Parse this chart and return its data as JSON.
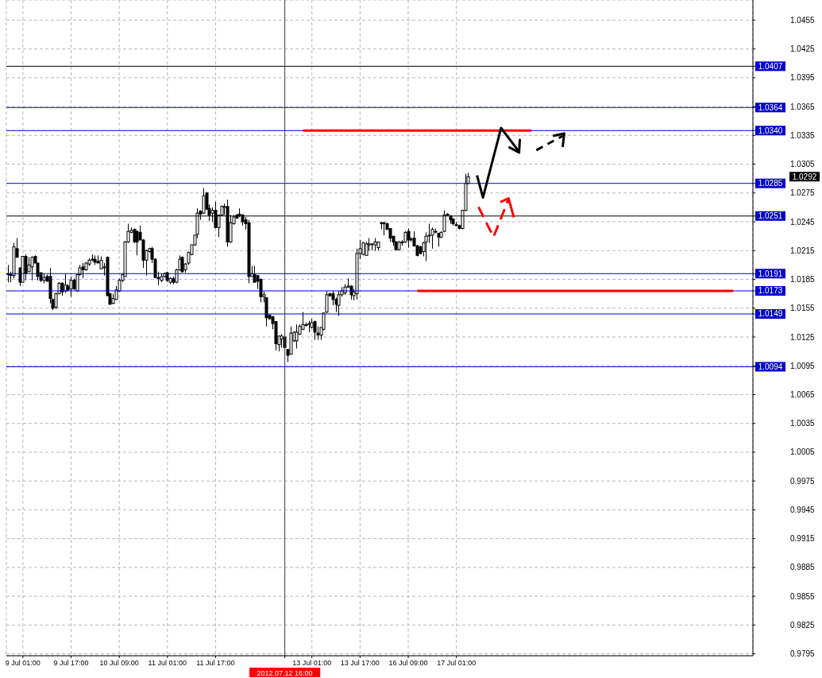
{
  "chart_data": {
    "type": "candlestick",
    "color": "#000000",
    "grid": true,
    "categories": [
      null,
      null,
      null,
      null,
      null,
      "9 Jul 01:00",
      null,
      null,
      null,
      null,
      null,
      null,
      null,
      null,
      null,
      null,
      null,
      null,
      null,
      null,
      null,
      "9 Jul 17:00",
      null,
      null,
      null,
      null,
      null,
      null,
      null,
      null,
      null,
      null,
      null,
      null,
      null,
      null,
      null,
      "10 Jul 09:00",
      null,
      null,
      null,
      null,
      null,
      null,
      null,
      null,
      null,
      null,
      null,
      null,
      null,
      null,
      null,
      "11 Jul 01:00",
      null,
      null,
      null,
      null,
      null,
      null,
      null,
      null,
      null,
      null,
      null,
      null,
      null,
      null,
      null,
      "11 Jul 17:00",
      null,
      null,
      null,
      null,
      null,
      null,
      null,
      null,
      null,
      null,
      null,
      null,
      null,
      null,
      null,
      null,
      null,
      null,
      null,
      null,
      null,
      null,
      "2012.07.12 16:00",
      null,
      null,
      null,
      null,
      null,
      null,
      null,
      null,
      "13 Jul 01:00",
      null,
      null,
      null,
      null,
      null,
      null,
      null,
      null,
      null,
      null,
      null,
      null,
      null,
      null,
      null,
      "13 Jul 17:00",
      null,
      null,
      null,
      null,
      null,
      null,
      null,
      null,
      null,
      null,
      null,
      null,
      null,
      null,
      null,
      "16 Jul 09:00",
      null,
      null,
      null,
      null,
      null,
      null,
      null,
      null,
      null,
      null,
      null,
      null,
      null,
      null,
      null,
      "17 Jul 01:00",
      null,
      null,
      null,
      null,
      null,
      null,
      null,
      null,
      null,
      null,
      null,
      null,
      null,
      null,
      null,
      null,
      null,
      null,
      null,
      null,
      null,
      null,
      null,
      null,
      null,
      null,
      null,
      null,
      null,
      null,
      null,
      null,
      null,
      null,
      null,
      null,
      null,
      null,
      null,
      null,
      null,
      null,
      null,
      null,
      null,
      null,
      null,
      null,
      null,
      null,
      null,
      null,
      null,
      null,
      null,
      null,
      null,
      null,
      null,
      null,
      null,
      null,
      null,
      null,
      null,
      null,
      null,
      null,
      null,
      null,
      null,
      null,
      null,
      null,
      null,
      null,
      null,
      null,
      null,
      null,
      null,
      null,
      null,
      null,
      null,
      null,
      null,
      null,
      null,
      null,
      null,
      null,
      null,
      null,
      null,
      null,
      null,
      null
    ],
    "ohlc": [
      [
        1.019,
        1.02,
        1.0182,
        1.0191
      ],
      [
        1.0189,
        1.0193,
        1.0182,
        1.019
      ],
      [
        1.0189,
        1.0223,
        1.0186,
        1.0219
      ],
      [
        1.0217,
        1.0228,
        1.0208,
        1.0208
      ],
      [
        1.0197,
        1.0197,
        1.0178,
        1.0182
      ],
      [
        1.0182,
        1.0209,
        1.0182,
        1.0209
      ],
      [
        1.0209,
        1.0211,
        1.0184,
        1.0191
      ],
      [
        1.0193,
        1.0208,
        1.0193,
        1.02
      ],
      [
        1.0198,
        1.0209,
        1.0184,
        1.0208
      ],
      [
        1.0209,
        1.021,
        1.0202,
        1.0202
      ],
      [
        1.0202,
        1.0202,
        1.0184,
        1.0188
      ],
      [
        1.0192,
        1.0192,
        1.0182,
        1.0184
      ],
      [
        1.0184,
        1.0191,
        1.0181,
        1.0187
      ],
      [
        1.0188,
        1.019,
        1.0183,
        1.0183
      ],
      [
        1.0188,
        1.0197,
        1.016,
        1.0165
      ],
      [
        1.0164,
        1.0165,
        1.0153,
        1.0155
      ],
      [
        1.0156,
        1.0171,
        1.0154,
        1.017
      ],
      [
        1.017,
        1.0182,
        1.017,
        1.0181
      ],
      [
        1.0181,
        1.0182,
        1.0168,
        1.0172
      ],
      [
        1.0173,
        1.0191,
        1.0171,
        1.0179
      ],
      [
        1.0178,
        1.018,
        1.0173,
        1.0174
      ],
      [
        1.0175,
        1.0188,
        1.0167,
        1.0184
      ],
      [
        1.0184,
        1.0186,
        1.0174,
        1.0175
      ],
      [
        1.0173,
        1.019,
        1.0173,
        1.019
      ],
      [
        1.019,
        1.02,
        1.0189,
        1.0197
      ],
      [
        1.0198,
        1.0202,
        1.0186,
        1.0195
      ],
      [
        1.0195,
        1.0203,
        1.0194,
        1.0202
      ],
      [
        1.0201,
        1.0207,
        1.0199,
        1.0205
      ],
      [
        1.0206,
        1.0211,
        1.0204,
        1.0206
      ],
      [
        1.0206,
        1.021,
        1.02,
        1.0203
      ],
      [
        1.0204,
        1.021,
        1.0202,
        1.0202
      ],
      [
        1.0196,
        1.0209,
        1.0196,
        1.0205
      ],
      [
        1.0197,
        1.0202,
        1.0189,
        1.0198
      ],
      [
        1.0208,
        1.0209,
        1.0168,
        1.0168
      ],
      [
        1.017,
        1.0171,
        1.0159,
        1.0159
      ],
      [
        1.016,
        1.017,
        1.0159,
        1.0165
      ],
      [
        1.0164,
        1.0178,
        1.0164,
        1.0174
      ],
      [
        1.0173,
        1.0186,
        1.0172,
        1.0184
      ],
      [
        1.0184,
        1.0191,
        1.0182,
        1.019
      ],
      [
        1.0188,
        1.0225,
        1.0188,
        1.0224
      ],
      [
        1.0224,
        1.0243,
        1.0223,
        1.0235
      ],
      [
        1.0234,
        1.0239,
        1.0233,
        1.0236
      ],
      [
        1.0237,
        1.0238,
        1.0223,
        1.0224
      ],
      [
        1.0235,
        1.0236,
        1.021,
        1.0224
      ],
      [
        1.0234,
        1.0241,
        1.0226,
        1.0226
      ],
      [
        1.0226,
        1.0227,
        1.0197,
        1.0205
      ],
      [
        1.0205,
        1.0216,
        1.0189,
        1.0215
      ],
      [
        1.0214,
        1.0218,
        1.0213,
        1.0217
      ],
      [
        1.0217,
        1.0219,
        1.0202,
        1.0206
      ],
      [
        1.0206,
        1.0207,
        1.0186,
        1.0187
      ],
      [
        1.0187,
        1.0193,
        1.0179,
        1.0186
      ],
      [
        1.0184,
        1.0191,
        1.0182,
        1.0188
      ],
      [
        1.0188,
        1.0192,
        1.0187,
        1.0191
      ],
      [
        1.0192,
        1.0193,
        1.0182,
        1.0184
      ],
      [
        1.0182,
        1.0187,
        1.018,
        1.0186
      ],
      [
        1.0186,
        1.0188,
        1.018,
        1.0182
      ],
      [
        1.0182,
        1.0196,
        1.0181,
        1.0195
      ],
      [
        1.0195,
        1.021,
        1.0194,
        1.0206
      ],
      [
        1.0208,
        1.0209,
        1.0192,
        1.0193
      ],
      [
        1.0195,
        1.0202,
        1.0192,
        1.0201
      ],
      [
        1.0202,
        1.0214,
        1.02,
        1.0213
      ],
      [
        1.0211,
        1.0221,
        1.021,
        1.0221
      ],
      [
        1.0221,
        1.0231,
        1.022,
        1.0231
      ],
      [
        1.0232,
        1.0259,
        1.0228,
        1.0254
      ],
      [
        1.0256,
        1.0257,
        1.0247,
        1.0253
      ],
      [
        1.0254,
        1.028,
        1.0253,
        1.0272
      ],
      [
        1.0275,
        1.0276,
        1.0258,
        1.0258
      ],
      [
        1.0259,
        1.0263,
        1.0246,
        1.0252
      ],
      [
        1.0254,
        1.026,
        1.0245,
        1.0257
      ],
      [
        1.0257,
        1.0266,
        1.0238,
        1.0239
      ],
      [
        1.0239,
        1.0252,
        1.0229,
        1.0252
      ],
      [
        1.0252,
        1.0262,
        1.0251,
        1.0261
      ],
      [
        1.026,
        1.0264,
        1.0252,
        1.0261
      ],
      [
        1.0261,
        1.0268,
        1.0219,
        1.0224
      ],
      [
        1.0224,
        1.0252,
        1.0223,
        1.0244
      ],
      [
        1.0243,
        1.0252,
        1.0242,
        1.025
      ],
      [
        1.0252,
        1.0253,
        1.0248,
        1.0249
      ],
      [
        1.0252,
        1.0259,
        1.025,
        1.0253
      ],
      [
        1.0252,
        1.0253,
        1.0241,
        1.0245
      ],
      [
        1.0247,
        1.025,
        1.0237,
        1.0243
      ],
      [
        1.0244,
        1.0247,
        1.0181,
        1.0188
      ],
      [
        1.0188,
        1.0199,
        1.0188,
        1.0191
      ],
      [
        1.019,
        1.0199,
        1.0182,
        1.0182
      ],
      [
        1.0189,
        1.0189,
        1.0175,
        1.0183
      ],
      [
        1.0185,
        1.0186,
        1.0161,
        1.0167
      ],
      [
        1.0167,
        1.0172,
        1.0161,
        1.0169
      ],
      [
        1.0166,
        1.0166,
        1.0136,
        1.0145
      ],
      [
        1.0148,
        1.0148,
        1.0143,
        1.0144
      ],
      [
        1.0146,
        1.0147,
        1.0133,
        1.0139
      ],
      [
        1.0141,
        1.0141,
        1.0111,
        1.0118
      ],
      [
        1.0117,
        1.0126,
        1.011,
        1.0126
      ],
      [
        1.0123,
        1.0128,
        1.0114,
        1.0126
      ],
      [
        1.0125,
        1.0128,
        1.0113,
        1.0114
      ],
      [
        1.0112,
        1.0112,
        1.0099,
        1.0106
      ],
      [
        1.0107,
        1.0136,
        1.0107,
        1.0129
      ],
      [
        1.0121,
        1.0131,
        1.012,
        1.013
      ],
      [
        1.0121,
        1.0138,
        1.0113,
        1.013
      ],
      [
        1.0128,
        1.0138,
        1.0127,
        1.0136
      ],
      [
        1.0133,
        1.0151,
        1.0132,
        1.0138
      ],
      [
        1.0137,
        1.014,
        1.0136,
        1.0138
      ],
      [
        1.0138,
        1.0142,
        1.013,
        1.0139
      ],
      [
        1.0135,
        1.0144,
        1.0134,
        1.014
      ],
      [
        1.0141,
        1.0142,
        1.0122,
        1.013
      ],
      [
        1.0129,
        1.0136,
        1.0122,
        1.0127
      ],
      [
        1.0127,
        1.0135,
        1.0122,
        1.0135
      ],
      [
        1.0133,
        1.015,
        1.0132,
        1.015
      ],
      [
        1.0151,
        1.0173,
        1.015,
        1.0169
      ],
      [
        1.017,
        1.0171,
        1.0167,
        1.0168
      ],
      [
        1.017,
        1.0173,
        1.0158,
        1.0164
      ],
      [
        1.0164,
        1.0166,
        1.0151,
        1.0159
      ],
      [
        1.0158,
        1.0173,
        1.0147,
        1.0169
      ],
      [
        1.0169,
        1.0177,
        1.0167,
        1.0173
      ],
      [
        1.0171,
        1.018,
        1.0169,
        1.0177
      ],
      [
        1.0177,
        1.0186,
        1.0176,
        1.0178
      ],
      [
        1.0178,
        1.0179,
        1.0164,
        1.0169
      ],
      [
        1.0168,
        1.0175,
        1.0163,
        1.0172
      ],
      [
        1.017,
        1.0217,
        1.0164,
        1.0212
      ],
      [
        1.0212,
        1.0226,
        1.0206,
        1.0217
      ],
      [
        1.0211,
        1.0224,
        1.021,
        1.0223
      ],
      [
        1.021,
        1.0224,
        1.021,
        1.0222
      ],
      [
        1.0221,
        1.0228,
        1.0215,
        1.0222
      ],
      [
        1.0221,
        1.0222,
        1.0215,
        1.0222
      ],
      [
        1.0221,
        1.0228,
        1.0215,
        1.0224
      ],
      [
        1.0218,
        1.0224,
        1.0215,
        1.0224
      ],
      [
        1.0244,
        1.0245,
        1.0237,
        1.0243
      ],
      [
        1.0243,
        1.0245,
        1.0231,
        1.0244
      ],
      [
        1.0243,
        1.0244,
        1.0237,
        1.0237
      ],
      [
        1.0238,
        1.0238,
        1.0224,
        1.0228
      ],
      [
        1.023,
        1.023,
        1.022,
        1.0224
      ],
      [
        1.0224,
        1.0225,
        1.0215,
        1.0216
      ],
      [
        1.0216,
        1.0225,
        1.0215,
        1.0224
      ],
      [
        1.0224,
        1.0226,
        1.022,
        1.0223
      ],
      [
        1.0224,
        1.0235,
        1.0223,
        1.0234
      ],
      [
        1.0235,
        1.0238,
        1.0218,
        1.0226
      ],
      [
        1.0227,
        1.0229,
        1.0224,
        1.0227
      ],
      [
        1.0228,
        1.0235,
        1.0219,
        1.022
      ],
      [
        1.022,
        1.0221,
        1.0209,
        1.021
      ],
      [
        1.0219,
        1.022,
        1.0211,
        1.0212
      ],
      [
        1.0214,
        1.0224,
        1.0209,
        1.0223
      ],
      [
        1.0224,
        1.0234,
        1.0204,
        1.023
      ],
      [
        1.0231,
        1.0243,
        1.0223,
        1.0231
      ],
      [
        1.0231,
        1.0239,
        1.0217,
        1.0237
      ],
      [
        1.0235,
        1.0238,
        1.0233,
        1.0235
      ],
      [
        1.0233,
        1.0233,
        1.0219,
        1.0229
      ],
      [
        1.0229,
        1.0235,
        1.0228,
        1.0234
      ],
      [
        1.0235,
        1.0257,
        1.0234,
        1.0252
      ],
      [
        1.0252,
        1.0254,
        1.0251,
        1.0253
      ],
      [
        1.0251,
        1.0252,
        1.0243,
        1.0247
      ],
      [
        1.0248,
        1.0248,
        1.0241,
        1.0243
      ],
      [
        1.0242,
        1.0245,
        1.024,
        1.0242
      ],
      [
        1.0241,
        1.0242,
        1.0237,
        1.0238
      ],
      [
        1.0238,
        1.0257,
        1.0237,
        1.0257
      ],
      [
        1.0257,
        1.0295,
        1.0256,
        1.0285
      ],
      [
        1.0285,
        1.0296,
        1.0284,
        1.0292
      ],
      null,
      null,
      null,
      null,
      null,
      null,
      null,
      null,
      null,
      null,
      null,
      null,
      null,
      null,
      null,
      null,
      null,
      null,
      null,
      null,
      null,
      null,
      null,
      null,
      null,
      null,
      null,
      null,
      null,
      null,
      null,
      null,
      null,
      null,
      null,
      null,
      null,
      null,
      null,
      null,
      null,
      null,
      null,
      null,
      null,
      null,
      null,
      null,
      null,
      null,
      null,
      null,
      null,
      null,
      null,
      null,
      null,
      null,
      null,
      null,
      null,
      null,
      null,
      null,
      null,
      null,
      null,
      null,
      null,
      null,
      null,
      null,
      null,
      null,
      null,
      null,
      null,
      null,
      null,
      null,
      null,
      null,
      null,
      null,
      null,
      null,
      null,
      null,
      null,
      null,
      null,
      null,
      null,
      null
    ],
    "series": [
      {
        "type": "line",
        "color": "#ff0000",
        "values": [
          null,
          null,
          null,
          null,
          null,
          null,
          null,
          null,
          null,
          null,
          null,
          null,
          null,
          null,
          null,
          null,
          null,
          null,
          null,
          null,
          null,
          null,
          null,
          null,
          null,
          null,
          null,
          null,
          null,
          null,
          null,
          null,
          null,
          null,
          null,
          null,
          null,
          null,
          null,
          null,
          null,
          null,
          null,
          null,
          null,
          null,
          null,
          null,
          null,
          null,
          null,
          null,
          null,
          null,
          null,
          null,
          null,
          null,
          null,
          null,
          null,
          null,
          null,
          null,
          null,
          null,
          null,
          null,
          null,
          null,
          null,
          null,
          null,
          null,
          null,
          null,
          null,
          null,
          null,
          null,
          null,
          null,
          null,
          null,
          null,
          null,
          null,
          null,
          null,
          null,
          null,
          null,
          null,
          null,
          null,
          null,
          null,
          null,
          1.034,
          null,
          null,
          null,
          null,
          null,
          null,
          null,
          null,
          null,
          null,
          null,
          null,
          null,
          null,
          null,
          null,
          null,
          null,
          null,
          null,
          null,
          null,
          null,
          null,
          null,
          null,
          null,
          null,
          null,
          null,
          null,
          null,
          null,
          null,
          null,
          null,
          null,
          null,
          null,
          null,
          null,
          null,
          null,
          null,
          null,
          null,
          null,
          null,
          null,
          null,
          null,
          null,
          null,
          null,
          null,
          null,
          null,
          null,
          null,
          null,
          null,
          null,
          null,
          null,
          null,
          null,
          null,
          null,
          null,
          null,
          null,
          null,
          null,
          null,
          null,
          1.034,
          null,
          null,
          null,
          null,
          null,
          null,
          null,
          null,
          null,
          null,
          null,
          null,
          null,
          null,
          null,
          null,
          null,
          null,
          null,
          null,
          null,
          null,
          null,
          null,
          null,
          null,
          null,
          null,
          null,
          null,
          null,
          null,
          null,
          null,
          null,
          null,
          null,
          null,
          null,
          null,
          null,
          null,
          null,
          null,
          null,
          null,
          null,
          null,
          null,
          null,
          null,
          null,
          null,
          null,
          null,
          null,
          null,
          null,
          null,
          null,
          null,
          null,
          null,
          null,
          null,
          null,
          null,
          null,
          null,
          null,
          null,
          null,
          null
        ]
      },
      {
        "type": "line",
        "color": "#ff0000",
        "values": [
          null,
          null,
          null,
          null,
          null,
          null,
          null,
          null,
          null,
          null,
          null,
          null,
          null,
          null,
          null,
          null,
          null,
          null,
          null,
          null,
          null,
          null,
          null,
          null,
          null,
          null,
          null,
          null,
          null,
          null,
          null,
          null,
          null,
          null,
          null,
          null,
          null,
          null,
          null,
          null,
          null,
          null,
          null,
          null,
          null,
          null,
          null,
          null,
          null,
          null,
          null,
          null,
          null,
          null,
          null,
          null,
          null,
          null,
          null,
          null,
          null,
          null,
          null,
          null,
          null,
          null,
          null,
          null,
          null,
          null,
          null,
          null,
          null,
          null,
          null,
          null,
          null,
          null,
          null,
          null,
          null,
          null,
          null,
          null,
          null,
          null,
          null,
          null,
          null,
          null,
          null,
          null,
          null,
          null,
          null,
          null,
          null,
          null,
          null,
          null,
          null,
          null,
          null,
          null,
          null,
          null,
          null,
          null,
          null,
          null,
          null,
          null,
          null,
          null,
          null,
          null,
          null,
          null,
          null,
          null,
          null,
          null,
          null,
          null,
          null,
          null,
          null,
          null,
          null,
          null,
          null,
          null,
          null,
          null,
          null,
          null,
          1.0173,
          null,
          null,
          null,
          null,
          null,
          null,
          null,
          null,
          null,
          null,
          null,
          null,
          null,
          null,
          null,
          null,
          null,
          null,
          null,
          null,
          null,
          null,
          null,
          null,
          null,
          null,
          null,
          null,
          null,
          null,
          null,
          null,
          null,
          null,
          null,
          null,
          null,
          null,
          null,
          null,
          null,
          null,
          null,
          null,
          null,
          null,
          null,
          null,
          null,
          null,
          null,
          null,
          null,
          null,
          null,
          null,
          null,
          null,
          null,
          null,
          null,
          null,
          null,
          null,
          null,
          null,
          null,
          null,
          null,
          null,
          null,
          null,
          null,
          null,
          null,
          null,
          null,
          null,
          null,
          null,
          null,
          null,
          null,
          null,
          null,
          null,
          null,
          null,
          null,
          null,
          null,
          null,
          null,
          null,
          null,
          null,
          null,
          null,
          null,
          null,
          null,
          null,
          null,
          null,
          1.0173,
          null,
          null,
          null,
          null,
          null,
          null
        ]
      }
    ],
    "ylim": [
      0.9793,
      1.0476
    ],
    "yticks": [
      0.9795,
      0.9825,
      0.9855,
      0.9885,
      0.9915,
      0.9945,
      0.9975,
      1.0005,
      1.0035,
      1.0065,
      1.0095,
      1.0125,
      1.0155,
      1.0185,
      1.0215,
      1.0245,
      1.0275,
      1.0305,
      1.0335,
      1.0365,
      1.0395,
      1.0425,
      1.0455
    ],
    "ref_lines": [
      {
        "axis": "y",
        "value": 1.0407,
        "label": "1.0407",
        "color": "#000000"
      },
      {
        "axis": "y",
        "value": 1.0364,
        "label": "1.0364",
        "color": "#0000cd"
      },
      {
        "axis": "y",
        "value": 1.034,
        "label": "1.0340",
        "color": "#0000cd"
      },
      {
        "axis": "y",
        "value": 1.0285,
        "label": "1.0285",
        "color": "#0000cd"
      },
      {
        "axis": "y",
        "value": 1.0251,
        "label": "1.0251",
        "color": "#000000"
      },
      {
        "axis": "y",
        "value": 1.0191,
        "label": "1.0191",
        "color": "#0000cd"
      },
      {
        "axis": "y",
        "value": 1.0173,
        "label": "1.0173",
        "color": "#0000cd"
      },
      {
        "axis": "y",
        "value": 1.0149,
        "label": "1.0149",
        "color": "#0000cd"
      },
      {
        "axis": "y",
        "value": 1.0094,
        "label": "1.0094",
        "color": "#0000cd"
      },
      {
        "axis": "x",
        "value": "2012.07.12 16:00",
        "color": "#404040"
      }
    ],
    "annotations": [
      "1.0292"
    ]
  }
}
